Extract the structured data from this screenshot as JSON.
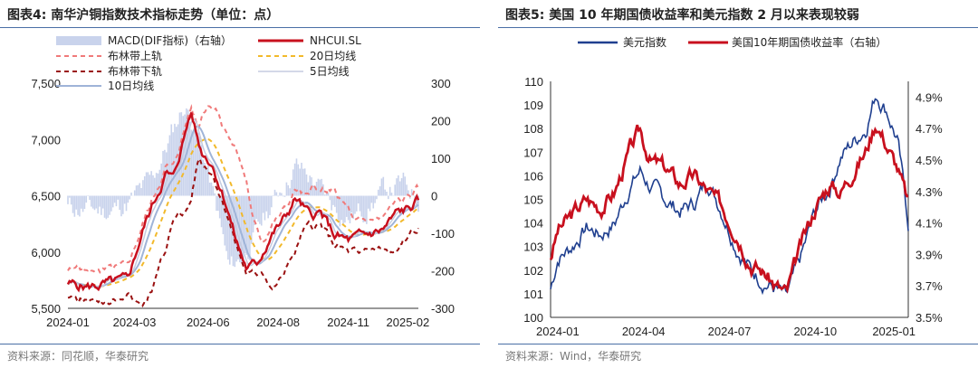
{
  "charts": {
    "left": {
      "title": "图表4:  南华沪铜指数技术指标走势（单位：点）",
      "source": "资料来源：同花顺，华泰研究"
    },
    "right": {
      "title": "图表5:  美国 10 年期国债收益率和美元指数 2 月以来表现较弱",
      "source": "资料来源：Wind，华泰研究"
    }
  },
  "chart_data": [
    {
      "type": "line",
      "title": "图表4:  南华沪铜指数技术指标走势（单位：点）",
      "x_ticks": [
        "2024-01",
        "2024-03",
        "2024-06",
        "2024-08",
        "2024-11",
        "2025-02"
      ],
      "y_ticks": [
        "7,500",
        "7,000",
        "6,500",
        "6,000",
        "5,500"
      ],
      "ylim": [
        5500,
        7500
      ],
      "y2_ticks": [
        "300",
        "200",
        "100",
        "0",
        "-100",
        "-200",
        "-300"
      ],
      "y2lim": [
        -300,
        300
      ],
      "legend_placement": "top",
      "legend": [
        "MACD(DIF指标)（右轴）",
        "NHCUI.SL",
        "布林带上轨",
        "20日均线",
        "布林带下轨",
        "5日均线",
        "10日均线"
      ],
      "colors": {
        "NHCUI.SL": "#c8101e",
        "布林带上轨": "#f07a7a",
        "布林带下轨": "#9a1010",
        "20日均线": "#f2b92b",
        "5日均线": "#c5cbe0",
        "10日均线": "#9fb4d8",
        "MACD": "#c9d3ec"
      },
      "series": [
        {
          "name": "NHCUI.SL",
          "x": [
            "2024-01",
            "2024-02",
            "2024-03",
            "2024-04",
            "2024-05",
            "2024-05-20",
            "2024-06",
            "2024-07",
            "2024-08",
            "2024-09",
            "2024-10",
            "2024-11",
            "2024-12",
            "2025-01",
            "2025-02"
          ],
          "values": [
            5700,
            5680,
            5760,
            6500,
            6950,
            7250,
            6600,
            6100,
            5850,
            6300,
            6400,
            6150,
            6100,
            6200,
            6450
          ]
        }
      ]
    },
    {
      "type": "line",
      "title": "图表5:  美国 10 年期国债收益率和美元指数 2 月以来表现较弱",
      "x_ticks": [
        "2024-01",
        "2024-04",
        "2024-07",
        "2024-10",
        "2025-01"
      ],
      "y_ticks": [
        "110",
        "109",
        "108",
        "107",
        "106",
        "105",
        "104",
        "103",
        "102",
        "101",
        "100"
      ],
      "ylim": [
        100,
        110
      ],
      "y2_ticks": [
        "4.9%",
        "4.7%",
        "4.5%",
        "4.3%",
        "4.1%",
        "3.9%",
        "3.7%",
        "3.5%"
      ],
      "y2lim": [
        3.5,
        5.0
      ],
      "legend_placement": "top",
      "series": [
        {
          "name": "美元指数",
          "axis": "left",
          "color": "#1f3f8f",
          "x": [
            "2024-01",
            "2024-02",
            "2024-03",
            "2024-04",
            "2024-05",
            "2024-06",
            "2024-07",
            "2024-08",
            "2024-09",
            "2024-10",
            "2024-11",
            "2024-12",
            "2025-01",
            "2025-02",
            "2025-03"
          ],
          "values": [
            101.5,
            103.5,
            104.0,
            106.0,
            105.0,
            104.8,
            105.5,
            102.0,
            100.8,
            102.5,
            106.5,
            107.5,
            109.5,
            108.0,
            104.0
          ]
        },
        {
          "name": "美国10年期国债收益率（右轴）",
          "axis": "right",
          "color": "#c8101e",
          "x": [
            "2024-01",
            "2024-02",
            "2024-03",
            "2024-04",
            "2024-05",
            "2024-06",
            "2024-07",
            "2024-08",
            "2024-09",
            "2024-10",
            "2024-11",
            "2024-12",
            "2025-01",
            "2025-02",
            "2025-03"
          ],
          "values": [
            3.95,
            4.25,
            4.25,
            4.65,
            4.45,
            4.35,
            4.25,
            3.85,
            3.65,
            4.05,
            4.35,
            4.55,
            4.75,
            4.45,
            4.2
          ]
        }
      ]
    }
  ]
}
